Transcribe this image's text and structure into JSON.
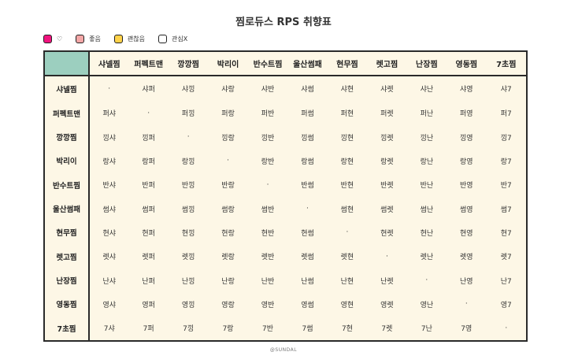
{
  "title": "찜로듀스 RPS 취향표",
  "legend": [
    {
      "label": "♡",
      "color": "#f0137e"
    },
    {
      "label": "좋음",
      "color": "#f4a7a7"
    },
    {
      "label": "괜찮음",
      "color": "#ffd24a"
    },
    {
      "label": "관심X",
      "color": "#ffffff"
    }
  ],
  "colors": {
    "corner": "#9ccfbf",
    "background": "#fdf7e6",
    "border": "#2a2a2a"
  },
  "columns": [
    "샤넬찜",
    "퍼펙트맨",
    "깡깡찜",
    "박리이",
    "반수트찜",
    "울산썸패",
    "현무찜",
    "렛고찜",
    "난장찜",
    "영동찜",
    "7초찜"
  ],
  "rows": [
    {
      "label": "샤넬찜",
      "cells": [
        "·",
        "샤퍼",
        "샤낑",
        "샤랑",
        "샤반",
        "샤썸",
        "샤현",
        "샤렛",
        "샤난",
        "샤영",
        "샤7"
      ]
    },
    {
      "label": "퍼펙트맨",
      "cells": [
        "퍼샤",
        "·",
        "퍼낑",
        "퍼랑",
        "퍼반",
        "퍼썸",
        "퍼현",
        "퍼렛",
        "퍼난",
        "퍼영",
        "퍼7"
      ]
    },
    {
      "label": "깡깡찜",
      "cells": [
        "낑샤",
        "낑퍼",
        "·",
        "낑랑",
        "낑반",
        "낑썸",
        "낑현",
        "낑렛",
        "낑난",
        "낑영",
        "낑7"
      ]
    },
    {
      "label": "박리이",
      "cells": [
        "랑샤",
        "랑퍼",
        "랑낑",
        "·",
        "랑반",
        "랑썸",
        "랑현",
        "랑렛",
        "랑난",
        "랑영",
        "랑7"
      ]
    },
    {
      "label": "반수트찜",
      "cells": [
        "반샤",
        "반퍼",
        "반낑",
        "반랑",
        "·",
        "반썸",
        "반현",
        "반렛",
        "반난",
        "반영",
        "반7"
      ]
    },
    {
      "label": "울산썸패",
      "cells": [
        "썸샤",
        "썸퍼",
        "썸낑",
        "썸랑",
        "썸반",
        "·",
        "썸현",
        "썸렛",
        "썸난",
        "썸영",
        "썸7"
      ]
    },
    {
      "label": "현무찜",
      "cells": [
        "현샤",
        "현퍼",
        "현낑",
        "현랑",
        "현반",
        "현썸",
        "·",
        "현렛",
        "현난",
        "현영",
        "현7"
      ]
    },
    {
      "label": "렛고찜",
      "cells": [
        "렛샤",
        "렛퍼",
        "렛낑",
        "렛랑",
        "렛반",
        "렛썸",
        "렛현",
        "·",
        "렛난",
        "렛영",
        "렛7"
      ]
    },
    {
      "label": "난장찜",
      "cells": [
        "난샤",
        "난퍼",
        "난낑",
        "난랑",
        "난반",
        "난썸",
        "난현",
        "난렛",
        "·",
        "난영",
        "난7"
      ]
    },
    {
      "label": "영동찜",
      "cells": [
        "영샤",
        "영퍼",
        "영낑",
        "영랑",
        "영반",
        "영썸",
        "영현",
        "영렛",
        "영난",
        "·",
        "영7"
      ]
    },
    {
      "label": "7초찜",
      "cells": [
        "7샤",
        "7퍼",
        "7낑",
        "7랑",
        "7반",
        "7썸",
        "7현",
        "7렛",
        "7난",
        "7영",
        "·"
      ]
    }
  ],
  "footer": "@SUNDAL"
}
